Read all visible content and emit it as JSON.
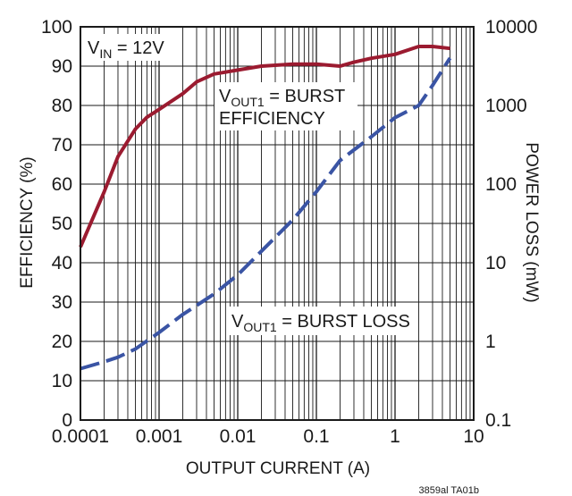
{
  "chart_data": {
    "type": "line",
    "title": "",
    "xlabel": "OUTPUT CURRENT (A)",
    "ylabel": "EFFICIENCY (%)",
    "y2label": "POWER LOSS (mW)",
    "x_scale": "log",
    "xlim": [
      0.0001,
      10
    ],
    "ylim": [
      0,
      100
    ],
    "y2_scale": "log",
    "y2lim": [
      0.1,
      10000
    ],
    "grid": true,
    "x_ticks": [
      "0.0001",
      "0.001",
      "0.01",
      "0.1",
      "1",
      "10"
    ],
    "y_ticks": [
      "0",
      "10",
      "20",
      "30",
      "40",
      "50",
      "60",
      "70",
      "80",
      "90",
      "100"
    ],
    "y2_ticks": [
      "0.1",
      "1",
      "10",
      "100",
      "1000",
      "10000"
    ],
    "annotations": {
      "vin": {
        "main": "V",
        "sub": "IN",
        "rest": " = 12V"
      },
      "eff1": {
        "main": "V",
        "sub": "OUT1",
        "rest": " = BURST"
      },
      "eff2": "EFFICIENCY",
      "loss": {
        "main": "V",
        "sub": "OUT1",
        "rest": " = BURST LOSS"
      }
    },
    "footer": "3859al TA01b",
    "series": [
      {
        "axis": "left",
        "color": "#9b1b30",
        "style": "solid",
        "x": [
          0.0001,
          0.0002,
          0.0003,
          0.0005,
          0.0007,
          0.001,
          0.002,
          0.003,
          0.005,
          0.01,
          0.02,
          0.05,
          0.1,
          0.2,
          0.3,
          0.5,
          1,
          2,
          3,
          5
        ],
        "y": [
          44,
          58,
          67,
          74,
          77,
          79,
          83,
          86,
          88,
          89,
          90,
          90.5,
          90.5,
          90,
          91,
          92,
          93,
          95,
          95,
          94.5
        ]
      },
      {
        "axis": "right",
        "color": "#3a54a4",
        "style": "dashed",
        "x": [
          0.0001,
          0.0002,
          0.0003,
          0.0005,
          0.001,
          0.002,
          0.005,
          0.01,
          0.02,
          0.05,
          0.1,
          0.2,
          0.5,
          1,
          2,
          3,
          5
        ],
        "y": [
          0.45,
          0.55,
          0.63,
          0.8,
          1.3,
          2.2,
          4,
          7,
          14,
          35,
          80,
          200,
          400,
          700,
          1000,
          1800,
          4000
        ]
      }
    ]
  }
}
